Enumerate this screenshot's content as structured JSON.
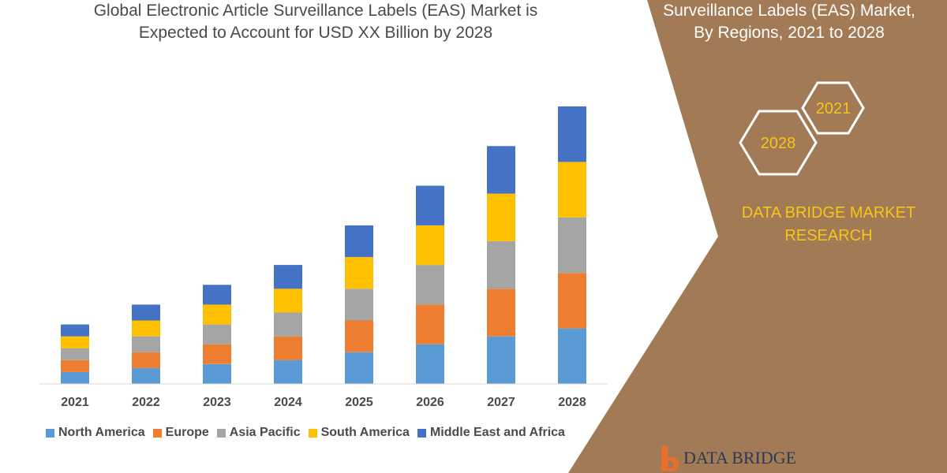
{
  "chart_data": {
    "type": "bar",
    "stacked": true,
    "title": "Global Electronic Article Surveillance Labels (EAS) Market is Expected to Account for USD XX Billion by 2028",
    "title_lines": [
      "Global Electronic Article Surveillance Labels (EAS) Market is",
      "Expected to Account for USD XX Billion by 2028"
    ],
    "categories": [
      "2021",
      "2022",
      "2023",
      "2024",
      "2025",
      "2026",
      "2027",
      "2028"
    ],
    "series": [
      {
        "name": "North America",
        "color": "#5b9bd5",
        "values": [
          15,
          20,
          25,
          30,
          40,
          50,
          60,
          70
        ]
      },
      {
        "name": "Europe",
        "color": "#ed7d31",
        "values": [
          15,
          20,
          25,
          30,
          40,
          50,
          60,
          70
        ]
      },
      {
        "name": "Asia Pacific",
        "color": "#a5a5a5",
        "values": [
          15,
          20,
          25,
          30,
          40,
          50,
          60,
          70
        ]
      },
      {
        "name": "South America",
        "color": "#ffc000",
        "values": [
          15,
          20,
          25,
          30,
          40,
          50,
          60,
          70
        ]
      },
      {
        "name": "Middle East and Africa",
        "color": "#4472c4",
        "values": [
          15,
          20,
          25,
          30,
          40,
          50,
          60,
          70
        ]
      }
    ],
    "ylim": [
      0,
      350
    ],
    "grid": false,
    "legend_position": "bottom"
  },
  "right_panel": {
    "title_lines": [
      "Surveillance Labels (EAS) Market,",
      "By Regions, 2021 to 2028"
    ],
    "hex_2021": "2021",
    "hex_2028": "2028",
    "brand_lines": [
      "DATA BRIDGE MARKET",
      "RESEARCH"
    ],
    "panel_color": "#a27b56",
    "accent_color": "#f5c518"
  },
  "logo": {
    "text": "DATA BRIDGE"
  }
}
